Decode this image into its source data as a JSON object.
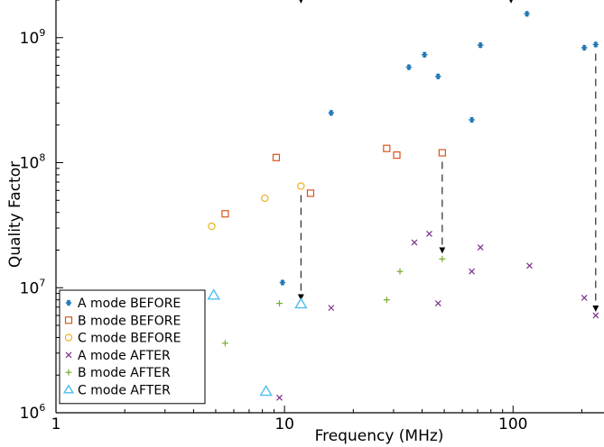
{
  "chart_data": {
    "type": "scatter",
    "xscale": "log",
    "yscale": "log",
    "xlabel": "Frequency (MHz)",
    "ylabel": "Quality Factor",
    "xlim": [
      1,
      250
    ],
    "ylim": [
      1000000,
      2000000000
    ],
    "grid": false,
    "legend_placement": "bottom-left",
    "x_ticks": [
      {
        "value": 1,
        "label": "1"
      },
      {
        "value": 10,
        "label": "10"
      },
      {
        "value": 100,
        "label": "100"
      }
    ],
    "y_ticks": [
      {
        "value": 1000000,
        "base": "10",
        "exp": "6"
      },
      {
        "value": 10000000,
        "base": "10",
        "exp": "7"
      },
      {
        "value": 100000000,
        "base": "10",
        "exp": "8"
      },
      {
        "value": 1000000000,
        "base": "10",
        "exp": "9"
      }
    ],
    "series": [
      {
        "name": "A mode BEFORE",
        "marker": "asterisk",
        "color": "#1f77b4",
        "points": [
          [
            9.8,
            11000000
          ],
          [
            16,
            250000000
          ],
          [
            35,
            580000000
          ],
          [
            41,
            730000000
          ],
          [
            47,
            490000000
          ],
          [
            66,
            220000000
          ],
          [
            72,
            870000000
          ],
          [
            115,
            1550000000
          ],
          [
            205,
            830000000
          ],
          [
            230,
            880000000
          ]
        ]
      },
      {
        "name": "B mode BEFORE",
        "marker": "square",
        "color": "#d95319",
        "points": [
          [
            5.5,
            39000000
          ],
          [
            9.2,
            110000000
          ],
          [
            13,
            57000000
          ],
          [
            28,
            130000000
          ],
          [
            31,
            115000000
          ],
          [
            49,
            120000000
          ]
        ]
      },
      {
        "name": "C mode BEFORE",
        "marker": "circle",
        "color": "#edb120",
        "points": [
          [
            4.8,
            31000000
          ],
          [
            8.2,
            52000000
          ],
          [
            11.8,
            65000000
          ]
        ]
      },
      {
        "name": "A mode AFTER",
        "marker": "x",
        "color": "#7e2f8e",
        "points": [
          [
            9.5,
            1320000
          ],
          [
            16,
            6900000
          ],
          [
            37,
            23000000
          ],
          [
            43,
            27000000
          ],
          [
            47,
            7500000
          ],
          [
            66,
            13500000
          ],
          [
            72,
            21000000
          ],
          [
            118,
            15000000
          ],
          [
            205,
            8300000
          ],
          [
            230,
            6000000
          ]
        ]
      },
      {
        "name": "B mode AFTER",
        "marker": "plus",
        "color": "#77ac30",
        "points": [
          [
            5.5,
            3600000
          ],
          [
            9.5,
            7500000
          ],
          [
            28,
            8000000
          ],
          [
            32,
            13500000
          ],
          [
            49,
            17000000
          ]
        ]
      },
      {
        "name": "C mode AFTER",
        "marker": "triangle",
        "color": "#4dbeee",
        "points": [
          [
            4.9,
            8700000
          ],
          [
            8.3,
            1480000
          ],
          [
            11.8,
            7400000
          ]
        ]
      }
    ],
    "arrows": [
      {
        "x": 11.8,
        "from": 65000000,
        "to": 8000000
      },
      {
        "x": 49,
        "from": 120000000,
        "to": 19000000
      },
      {
        "x": 230,
        "from": 880000000,
        "to": 6500000
      },
      {
        "x": 11.8,
        "from": 2000000000,
        "to": 1900000000
      },
      {
        "x": 98,
        "from": 2000000000,
        "to": 1900000000
      }
    ]
  }
}
